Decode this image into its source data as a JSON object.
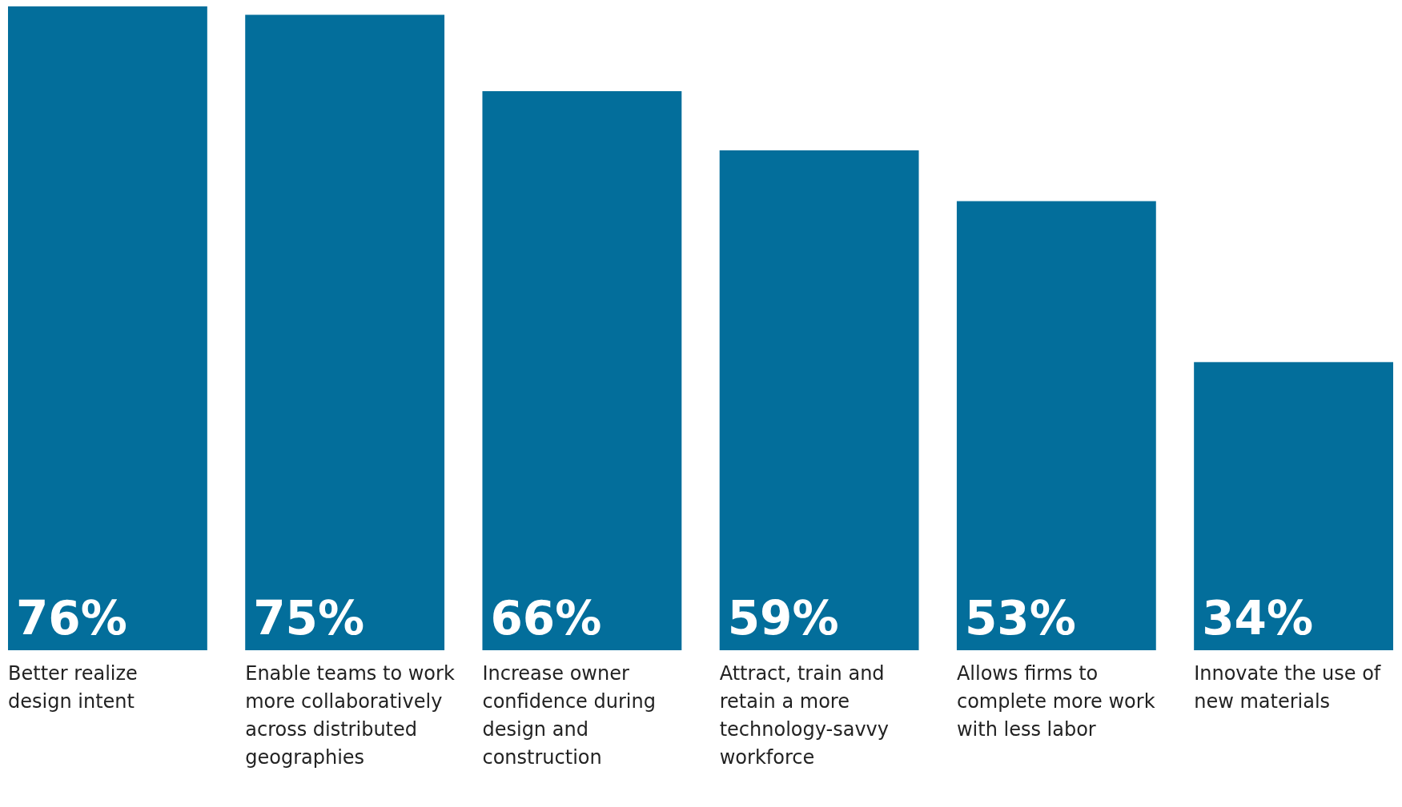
{
  "chart_data": {
    "type": "bar",
    "categories": [
      "Better realize design intent",
      "Enable teams to work more collaboratively across distributed geographies",
      "Increase owner confidence during design and construction",
      "Attract, train and retain a more technology-savvy workforce",
      "Allows firms to complete more work with less labor",
      "Innovate the use of new materials"
    ],
    "values": [
      76,
      75,
      66,
      59,
      53,
      34
    ],
    "value_labels": [
      "76%",
      "75%",
      "66%",
      "59%",
      "53%",
      "34%"
    ],
    "color": "#036e9b"
  }
}
